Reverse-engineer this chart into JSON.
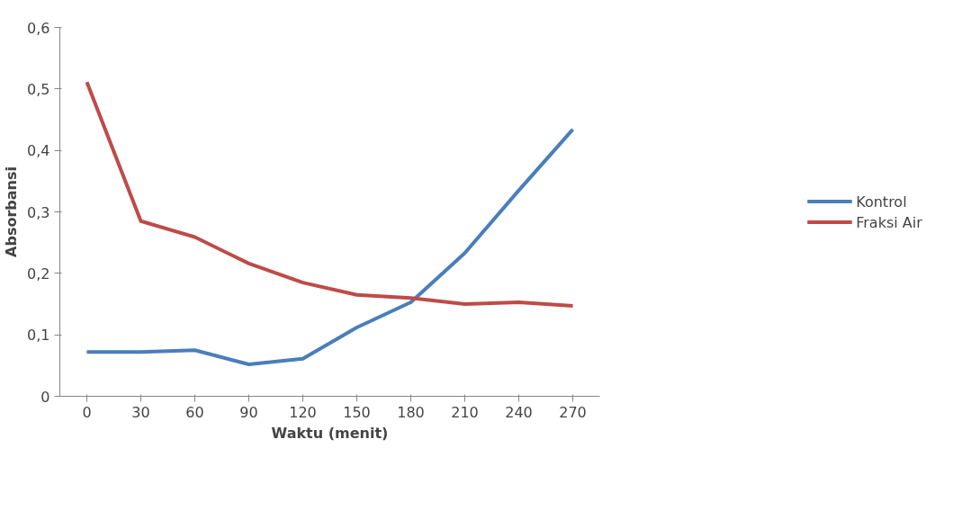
{
  "chart_data": {
    "type": "line",
    "xlabel": "Waktu (menit)",
    "ylabel": "Absorbansi",
    "categories": [
      "0",
      "30",
      "60",
      "90",
      "120",
      "150",
      "180",
      "210",
      "240",
      "270"
    ],
    "series": [
      {
        "name": "Kontrol",
        "color": "#4a7ebb",
        "values": [
          0.072,
          0.072,
          0.075,
          0.052,
          0.061,
          0.112,
          0.153,
          0.233,
          0.335,
          0.434
        ]
      },
      {
        "name": "Fraksi Air",
        "color": "#be4b48",
        "values": [
          0.511,
          0.285,
          0.259,
          0.216,
          0.185,
          0.165,
          0.16,
          0.15,
          0.153,
          0.147
        ]
      }
    ],
    "ylim": [
      0,
      0.6
    ],
    "yticks": [
      0,
      {
        "value": 0.1,
        "label": "0,1"
      },
      {
        "value": 0.2,
        "label": "0,2"
      },
      {
        "value": 0.3,
        "label": "0,3"
      },
      {
        "value": 0.4,
        "label": "0,4"
      },
      {
        "value": 0.5,
        "label": "0,5"
      },
      {
        "value": 0.6,
        "label": "0,6"
      }
    ],
    "grid": false,
    "legend": "right",
    "marker": "none",
    "line_style": "solid"
  }
}
